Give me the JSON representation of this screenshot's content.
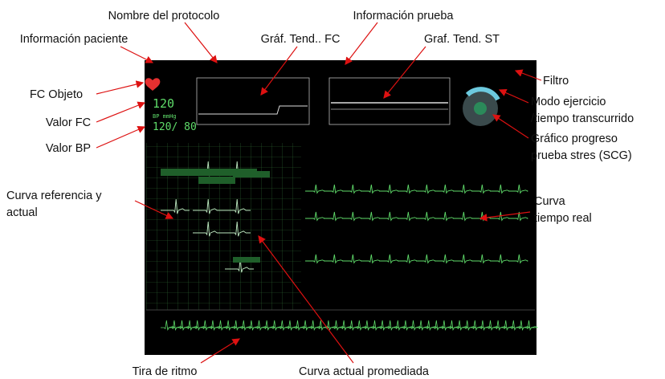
{
  "annotations": [
    {
      "lines": [
        "Nombre del protocolo"
      ]
    },
    {
      "lines": [
        "Información prueba"
      ]
    },
    {
      "lines": [
        "Información paciente"
      ]
    },
    {
      "lines": [
        "Gráf. Tend.. FC"
      ]
    },
    {
      "lines": [
        "Graf. Tend. ST"
      ]
    },
    {
      "lines": [
        "FC Objeto"
      ]
    },
    {
      "lines": [
        "Filtro"
      ]
    },
    {
      "lines": [
        "Modo ejercicio",
        "/tiempo transcurrido"
      ]
    },
    {
      "lines": [
        "Valor FC"
      ]
    },
    {
      "lines": [
        "Valor BP"
      ]
    },
    {
      "lines": [
        "Gráfico progreso",
        "prueba stres (SCG)"
      ]
    },
    {
      "lines": [
        "Curva referencia y",
        "actual"
      ]
    },
    {
      "lines": [
        "Curva",
        "tiempo real"
      ]
    },
    {
      "lines": [
        "Tira de ritmo"
      ]
    },
    {
      "lines": [
        "Curva actual promediada"
      ]
    }
  ],
  "screen": {
    "hr_value": "120",
    "bp_label": "BP mmHg",
    "bp_value": "120/ 80"
  }
}
